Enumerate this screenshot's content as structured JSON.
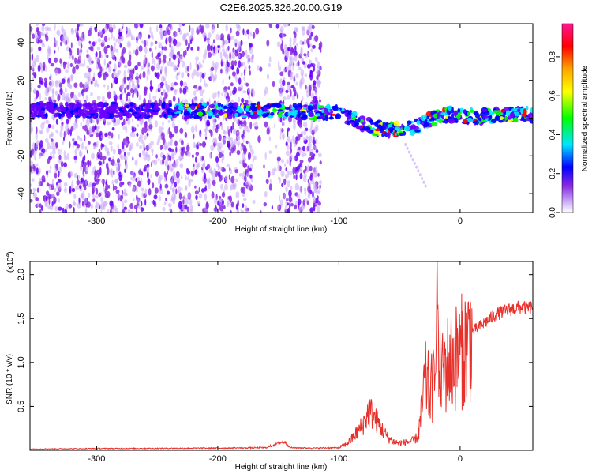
{
  "figure": {
    "title": "C2E6.2025.326.20.00.G19"
  },
  "chart_data": [
    {
      "type": "heatmap",
      "xlabel": "Height of straight line (km)",
      "ylabel": "Frequency (Hz)",
      "xlim": [
        -355,
        60
      ],
      "ylim": [
        -50,
        50
      ],
      "xticks": [
        -300,
        -200,
        -100,
        0
      ],
      "yticks": [
        -40,
        -20,
        0,
        20,
        40
      ],
      "colorbar": {
        "label": "Normalized spectral amplitude",
        "ticks": [
          0.0,
          0.2,
          0.4,
          0.6,
          0.8
        ],
        "range": [
          0,
          0.97
        ],
        "colors": [
          "#ffffff",
          "#c8a8f8",
          "#8a2be2",
          "#0000ff",
          "#00e5ff",
          "#00ff00",
          "#ffff00",
          "#ffa500",
          "#ff0000",
          "#ff1493"
        ]
      },
      "ridge": {
        "x": [
          -240,
          -200,
          -160,
          -120,
          -100,
          -90,
          -80,
          -70,
          -60,
          -50,
          -40,
          -30,
          -20,
          -10,
          0,
          20,
          40,
          60
        ],
        "y": [
          4,
          4,
          4,
          3,
          3,
          0,
          -3,
          -5,
          -6,
          -6,
          -5,
          -2,
          0,
          2,
          1,
          1,
          2,
          2
        ]
      }
    },
    {
      "type": "line",
      "xlabel": "Height of straight line (km)",
      "ylabel": "SNR (10 * v/v)",
      "exponent_label": "(x10",
      "exponent_sup": "4",
      "exponent_close": ")",
      "xlim": [
        -355,
        60
      ],
      "ylim": [
        0,
        21500
      ],
      "xticks": [
        -300,
        -200,
        -100,
        0
      ],
      "yticks": [
        5000,
        10000,
        15000,
        20000
      ],
      "ytick_labels": [
        "0.5",
        "1.0",
        "1.5",
        "2.0"
      ],
      "series": [
        {
          "color": "#e8302a",
          "x": [
            -355,
            -300,
            -250,
            -200,
            -160,
            -150,
            -145,
            -140,
            -120,
            -100,
            -95,
            -90,
            -85,
            -80,
            -75,
            -72,
            -70,
            -65,
            -60,
            -55,
            -50,
            -45,
            -40,
            -35,
            -32,
            -30,
            -28,
            -25,
            -22,
            -20,
            -19,
            -18,
            -15,
            -12,
            -10,
            -5,
            0,
            5,
            10,
            20,
            30,
            40,
            50,
            55,
            60
          ],
          "y": [
            150,
            200,
            220,
            250,
            300,
            800,
            1000,
            300,
            250,
            300,
            600,
            1200,
            2000,
            3000,
            4500,
            4000,
            3500,
            2500,
            1500,
            1000,
            800,
            900,
            1000,
            1500,
            4000,
            7000,
            8000,
            6500,
            7500,
            9000,
            21500,
            9000,
            8500,
            9500,
            10000,
            10500,
            11000,
            12000,
            13500,
            14500,
            15500,
            16000,
            16300,
            16200,
            16300
          ]
        }
      ]
    }
  ]
}
